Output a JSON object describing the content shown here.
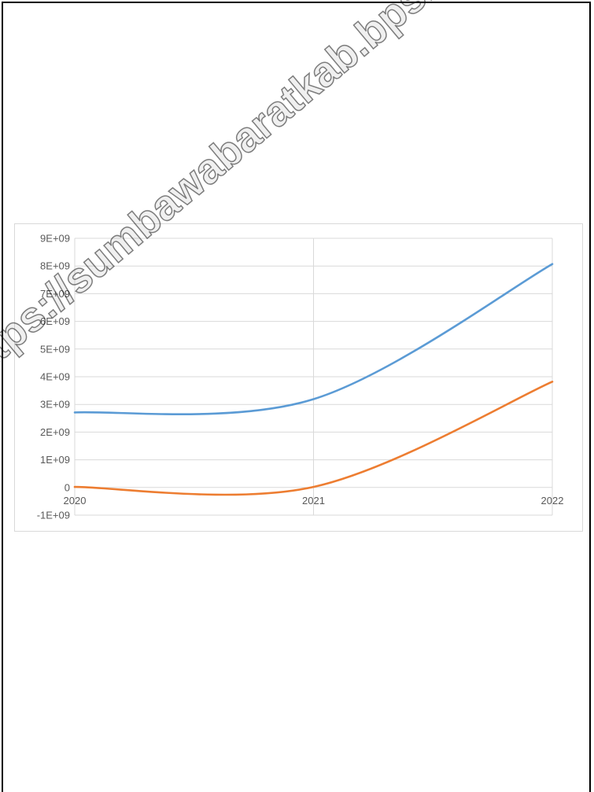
{
  "chart_data": {
    "type": "line",
    "x": [
      "2020",
      "2021",
      "2022"
    ],
    "series": [
      {
        "values": [
          2710000000,
          3190000000,
          8070000000
        ],
        "color": "#5b9bd5"
      },
      {
        "values": [
          20000000,
          20000000,
          3820000000
        ],
        "color": "#ed7d31"
      }
    ],
    "y_ticks": [
      "-1E+09",
      "0",
      "1E+09",
      "2E+09",
      "3E+09",
      "4E+09",
      "5E+09",
      "6E+09",
      "7E+09",
      "8E+09",
      "9E+09"
    ],
    "ylim": [
      -1000000000,
      9000000000
    ],
    "grid": true,
    "legend": "none",
    "smooth": true,
    "gridline_color": "#d9d9d9"
  },
  "watermark": {
    "text": "https://sumbawabaratkab.bps.go.id"
  }
}
